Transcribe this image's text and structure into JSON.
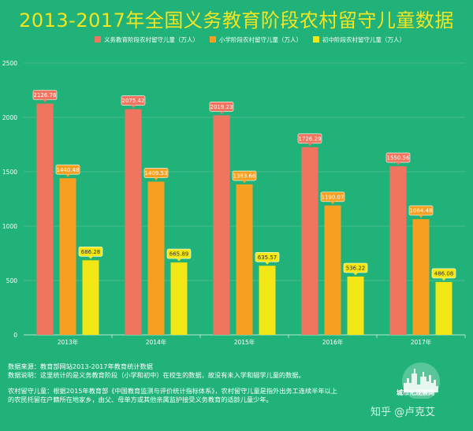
{
  "title": "2013-2017年全国义务教育阶段农村留守儿童数据",
  "chart_data": {
    "type": "bar",
    "categories": [
      "2013年",
      "2014年",
      "2015年",
      "2016年",
      "2017年"
    ],
    "series": [
      {
        "name": "义务教育阶段农村留守儿童（万人）",
        "color": "#ef7560",
        "values": [
          2126.76,
          2075.42,
          2019.23,
          1726.29,
          1550.56
        ]
      },
      {
        "name": "小学阶段农村留守儿童（万人）",
        "color": "#f5a020",
        "values": [
          1440.48,
          1409.53,
          1383.66,
          1190.07,
          1064.48
        ]
      },
      {
        "name": "初中阶段农村留守儿童（万人）",
        "color": "#f2e614",
        "values": [
          686.28,
          665.89,
          635.57,
          536.22,
          486.08
        ]
      }
    ],
    "data_labels": [
      [
        "2126.76",
        "2075.42",
        "2019.23",
        "1726.29",
        "1550.56"
      ],
      [
        "1440.48",
        "1409.53",
        "1383.66",
        "1190.07",
        "1064.48"
      ],
      [
        "686.28",
        "665.89",
        "635.57",
        "536.22",
        "486.08"
      ]
    ],
    "yticks": [
      "0",
      "500",
      "1000",
      "1500",
      "2000",
      "2500"
    ],
    "ylim": [
      0,
      2500
    ],
    "grid": true,
    "legend_position": "top"
  },
  "footer": {
    "line1": "数据来源：教育部网站2013-2017年教育统计数据",
    "line2": "数据说明：这里统计的是义务教育阶段（小学和初中）在校生的数据，故没有未入学和辍学儿童的数据。",
    "line3": "农村留守儿童：根据2015年教育部《中国教育监测与评价统计指标体系》，农村留守儿童是指外出务工连续半年以上",
    "line4": "的农民托留在户籍所在地家乡，由父、母单方或其他亲属监护接受义务教育的适龄儿童少年。"
  },
  "watermark": {
    "logo_text": "城市化观察网",
    "text": "知乎 @卢克艾"
  }
}
